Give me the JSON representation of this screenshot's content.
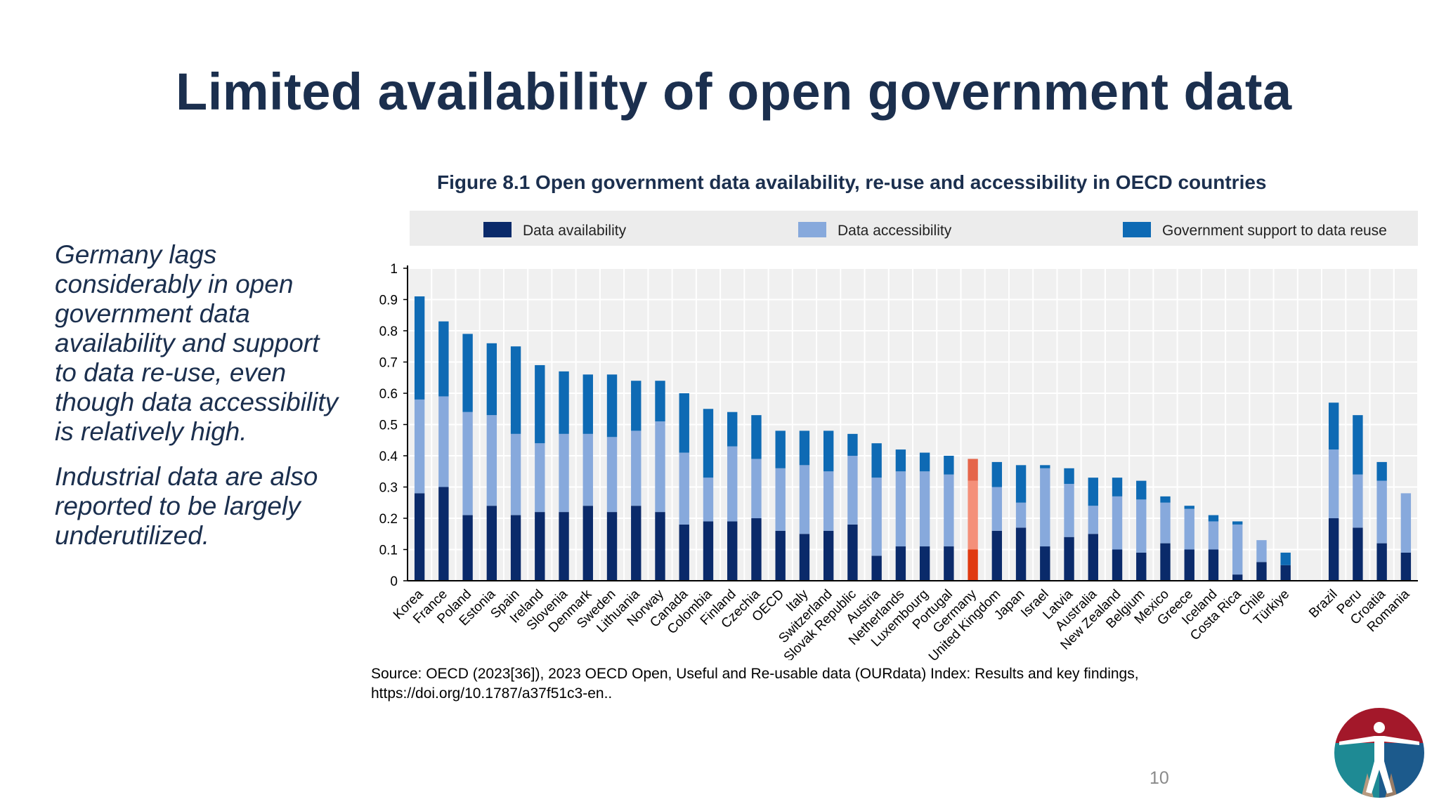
{
  "slide": {
    "title": "Limited availability of open government data",
    "paragraph_1": "Germany lags considerably in open government data availability and support to data re-use, even though data accessibility is relatively high.",
    "paragraph_2": "Industrial data are also reported to be largely underutilized.",
    "source_line_1": "Source: OECD (2023[36]), 2023 OECD Open, Useful and Re-usable data (OURdata) Index: Results and key findings,",
    "source_line_2": "https://doi.org/10.1787/a37f51c3-en..",
    "page_number": "10",
    "logo_icon": "vitruvian-man-logo"
  },
  "chart_data": {
    "type": "bar",
    "stacked": true,
    "title": "Figure 8.1 Open government data availability, re-use and accessibility in OECD countries",
    "xlabel": "",
    "ylabel": "",
    "ylim": [
      0,
      1
    ],
    "yticks": [
      "0",
      "0.1",
      "0.2",
      "0.3",
      "0.4",
      "0.5",
      "0.6",
      "0.7",
      "0.8",
      "0.9",
      "1"
    ],
    "grid": true,
    "legend_position": "top",
    "highlight": "Germany",
    "categories": [
      "Korea",
      "France",
      "Poland",
      "Estonia",
      "Spain",
      "Ireland",
      "Slovenia",
      "Denmark",
      "Sweden",
      "Lithuania",
      "Norway",
      "Canada",
      "Colombia",
      "Finland",
      "Czechia",
      "OECD",
      "Italy",
      "Switzerland",
      "Slovak Republic",
      "Austria",
      "Netherlands",
      "Luxembourg",
      "Portugal",
      "Germany",
      "United Kingdom",
      "Japan",
      "Israel",
      "Latvia",
      "Australia",
      "New Zealand",
      "Belgium",
      "Mexico",
      "Greece",
      "Iceland",
      "Costa Rica",
      "Chile",
      "Türkiye",
      "",
      "Brazil",
      "Peru",
      "Croatia",
      "Romania"
    ],
    "series": [
      {
        "name": "Data availability",
        "color": "#0a2a6a",
        "values": [
          0.28,
          0.3,
          0.21,
          0.24,
          0.21,
          0.22,
          0.22,
          0.24,
          0.22,
          0.24,
          0.22,
          0.18,
          0.19,
          0.19,
          0.2,
          0.16,
          0.15,
          0.16,
          0.18,
          0.08,
          0.11,
          0.11,
          0.11,
          0.1,
          0.16,
          0.17,
          0.11,
          0.14,
          0.15,
          0.1,
          0.09,
          0.12,
          0.1,
          0.1,
          0.02,
          0.06,
          0.05,
          0,
          0.2,
          0.17,
          0.12,
          0.09
        ]
      },
      {
        "name": "Data accessibility",
        "color": "#87a9dc",
        "values": [
          0.3,
          0.29,
          0.33,
          0.29,
          0.26,
          0.22,
          0.25,
          0.23,
          0.24,
          0.24,
          0.29,
          0.23,
          0.14,
          0.24,
          0.19,
          0.2,
          0.22,
          0.19,
          0.22,
          0.25,
          0.24,
          0.24,
          0.23,
          0.22,
          0.14,
          0.08,
          0.25,
          0.17,
          0.09,
          0.17,
          0.17,
          0.13,
          0.13,
          0.09,
          0.16,
          0.07,
          0.0,
          0,
          0.22,
          0.17,
          0.2,
          0.19
        ]
      },
      {
        "name": "Government support to data reuse",
        "color": "#0e6ab4",
        "values": [
          0.33,
          0.24,
          0.25,
          0.23,
          0.28,
          0.25,
          0.2,
          0.19,
          0.2,
          0.16,
          0.13,
          0.19,
          0.22,
          0.11,
          0.14,
          0.12,
          0.11,
          0.13,
          0.07,
          0.11,
          0.07,
          0.06,
          0.06,
          0.07,
          0.08,
          0.12,
          0.01,
          0.05,
          0.09,
          0.06,
          0.06,
          0.02,
          0.01,
          0.02,
          0.01,
          0.0,
          0.04,
          0,
          0.15,
          0.19,
          0.06,
          0.0
        ]
      }
    ],
    "highlight_colors": [
      "#e03a10",
      "#f4907a",
      "#e5654a"
    ]
  }
}
